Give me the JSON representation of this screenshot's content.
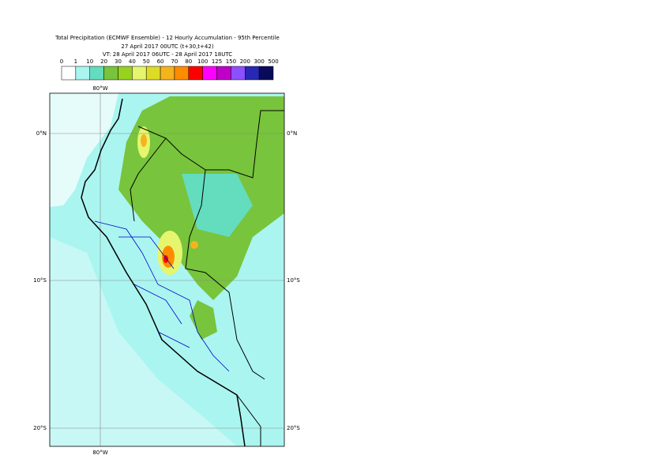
{
  "header": {
    "title": "Total Precipitation (ECMWF Ensemble) - 12 Hourly Accumulation - 95th Percentile",
    "subtitle": "27 April 2017 00UTC (t+30,t+42)",
    "valid_time": "VT: 28 April 2017 06UTC - 28 April 2017 18UTC"
  },
  "legend": {
    "labels": [
      0,
      1,
      10,
      20,
      30,
      40,
      50,
      60,
      70,
      80,
      100,
      125,
      150,
      200,
      300,
      500
    ],
    "colors": [
      "#ffffff",
      "#aaf5f0",
      "#64dcbe",
      "#78c43c",
      "#96d21e",
      "#e6f56e",
      "#dcdc28",
      "#f5b41e",
      "#ff8c00",
      "#ff0000",
      "#ff00ff",
      "#c000c8",
      "#8c50ff",
      "#2828b4",
      "#0a0a5a"
    ]
  },
  "map": {
    "lon_labels": [
      "80°W"
    ],
    "lat_labels": [
      "0°N",
      "10°S",
      "20°S"
    ]
  }
}
